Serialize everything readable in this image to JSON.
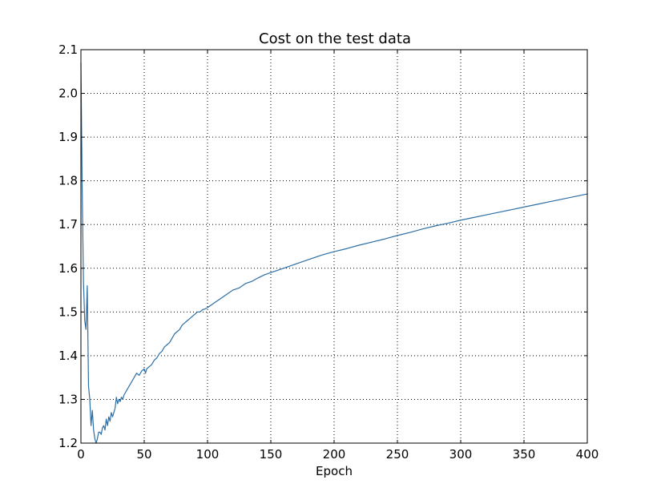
{
  "chart_data": {
    "type": "line",
    "title": "Cost on the test data",
    "xlabel": "Epoch",
    "ylabel": "",
    "xlim": [
      0,
      400
    ],
    "ylim": [
      1.2,
      2.1
    ],
    "x_ticks": [
      0,
      50,
      100,
      150,
      200,
      250,
      300,
      350,
      400
    ],
    "x_tick_labels": [
      "0",
      "50",
      "100",
      "150",
      "200",
      "250",
      "300",
      "350",
      "400"
    ],
    "y_ticks": [
      1.2,
      1.3,
      1.4,
      1.5,
      1.6,
      1.7,
      1.8,
      1.9,
      2.0,
      2.1
    ],
    "y_tick_labels": [
      "1.2",
      "1.3",
      "1.4",
      "1.5",
      "1.6",
      "1.7",
      "1.8",
      "1.9",
      "2.0",
      "2.1"
    ],
    "grid": true,
    "legend": "none",
    "colors": {
      "series_line": "#2c6ea5",
      "grid": "#000000",
      "axes": "#000000",
      "background": "#ffffff"
    },
    "series": [
      {
        "x": [
          0,
          1,
          2,
          3,
          4,
          5,
          6,
          7,
          8,
          9,
          10,
          11,
          12,
          13,
          14,
          15,
          16,
          17,
          18,
          19,
          20,
          21,
          22,
          23,
          24,
          25,
          26,
          27,
          28,
          29,
          30,
          31,
          32,
          33,
          34,
          35,
          36,
          37,
          38,
          39,
          40,
          42,
          44,
          46,
          48,
          50,
          51,
          52,
          54,
          56,
          58,
          60,
          62,
          64,
          66,
          68,
          70,
          72,
          74,
          76,
          78,
          80,
          82,
          84,
          86,
          88,
          90,
          92,
          94,
          96,
          98,
          100,
          105,
          110,
          115,
          120,
          125,
          130,
          135,
          140,
          145,
          150,
          155,
          160,
          165,
          170,
          175,
          180,
          185,
          190,
          195,
          200,
          210,
          220,
          230,
          240,
          250,
          260,
          270,
          280,
          290,
          300,
          310,
          320,
          330,
          340,
          350,
          360,
          370,
          380,
          390,
          400
        ],
        "y": [
          2.07,
          1.78,
          1.57,
          1.48,
          1.46,
          1.56,
          1.33,
          1.3,
          1.24,
          1.275,
          1.23,
          1.21,
          1.2,
          1.21,
          1.225,
          1.225,
          1.22,
          1.235,
          1.24,
          1.23,
          1.255,
          1.24,
          1.26,
          1.25,
          1.27,
          1.26,
          1.27,
          1.28,
          1.305,
          1.29,
          1.3,
          1.295,
          1.305,
          1.3,
          1.31,
          1.315,
          1.32,
          1.325,
          1.33,
          1.335,
          1.34,
          1.35,
          1.36,
          1.355,
          1.365,
          1.37,
          1.36,
          1.37,
          1.375,
          1.38,
          1.39,
          1.395,
          1.405,
          1.41,
          1.42,
          1.425,
          1.43,
          1.44,
          1.45,
          1.455,
          1.46,
          1.47,
          1.475,
          1.48,
          1.485,
          1.49,
          1.495,
          1.5,
          1.5,
          1.505,
          1.507,
          1.51,
          1.52,
          1.53,
          1.54,
          1.55,
          1.555,
          1.565,
          1.57,
          1.578,
          1.585,
          1.59,
          1.595,
          1.6,
          1.605,
          1.61,
          1.615,
          1.62,
          1.625,
          1.63,
          1.634,
          1.638,
          1.645,
          1.653,
          1.66,
          1.667,
          1.675,
          1.682,
          1.69,
          1.697,
          1.703,
          1.71,
          1.716,
          1.722,
          1.728,
          1.734,
          1.74,
          1.746,
          1.752,
          1.758,
          1.764,
          1.77
        ]
      }
    ]
  }
}
